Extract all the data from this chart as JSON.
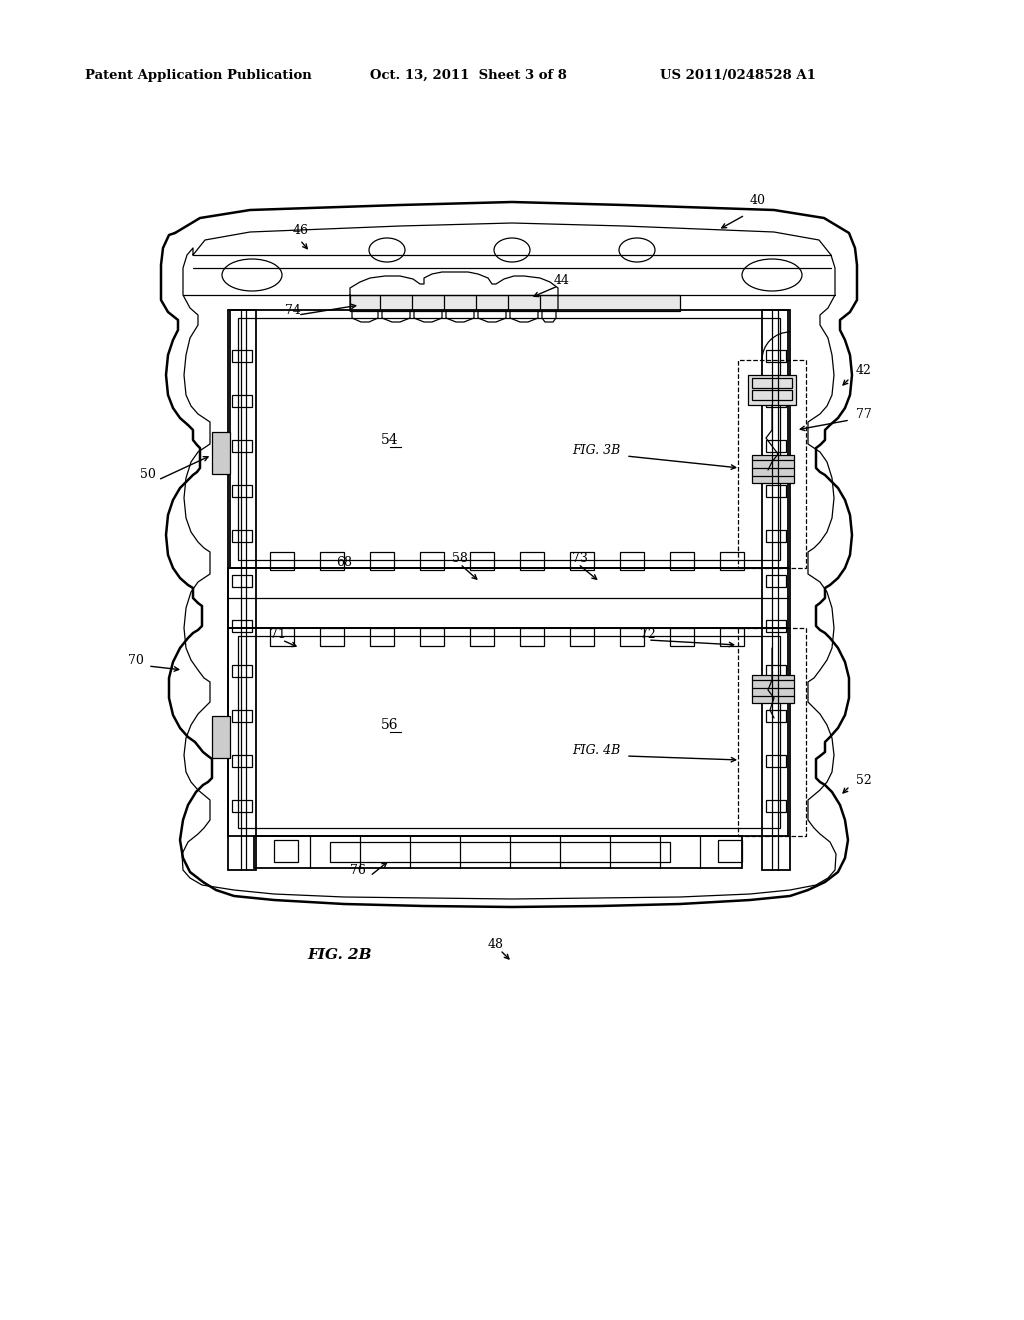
{
  "bg_color": "#ffffff",
  "line_color": "#000000",
  "header_left": "Patent Application Publication",
  "header_mid": "Oct. 13, 2011  Sheet 3 of 8",
  "header_right": "US 2011/0248528 A1"
}
